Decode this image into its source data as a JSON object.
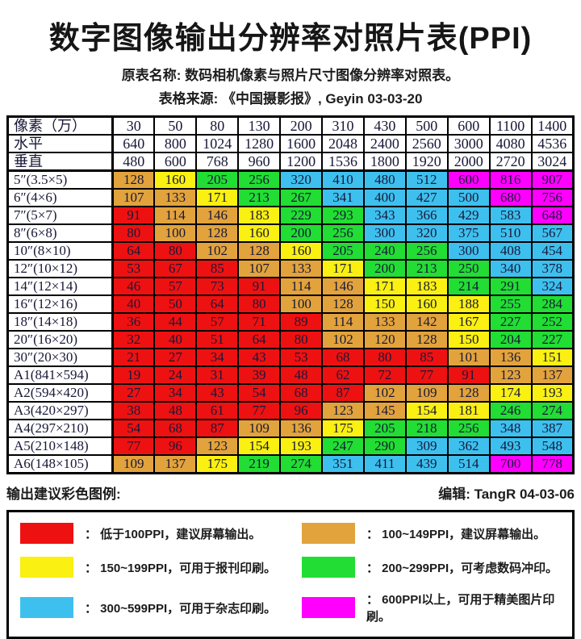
{
  "title": "数字图像输出分辨率对照片表(PPI)",
  "subtitle1": "原表名称: 数码相机像素与照片尺寸图像分辨率对照表。",
  "subtitle2": "表格来源: 《中国摄影报》, Geyin 03-03-20",
  "footer": {
    "legend_title": "输出建议彩色图例:",
    "editor": "编辑: TangR 04-03-06"
  },
  "colors": {
    "red": "#EE1111",
    "orange": "#E2A33C",
    "yellow": "#FAF012",
    "green": "#22DD33",
    "blue": "#3EC0EE",
    "magenta": "#FF00FF"
  },
  "ppi_color_rules": [
    {
      "max": 99,
      "color": "red"
    },
    {
      "max": 149,
      "color": "orange"
    },
    {
      "max": 199,
      "color": "yellow"
    },
    {
      "max": 299,
      "color": "green"
    },
    {
      "max": 599,
      "color": "blue"
    },
    {
      "max": 99999,
      "color": "magenta"
    }
  ],
  "chart_data": {
    "type": "table",
    "title": "数字图像输出分辨率对照片表(PPI)",
    "header_rows": [
      {
        "label": "像素（万）",
        "values": [
          30,
          50,
          80,
          130,
          200,
          310,
          430,
          500,
          600,
          1100,
          1400
        ]
      },
      {
        "label": "水平",
        "values": [
          640,
          800,
          1024,
          1280,
          1600,
          2048,
          2400,
          2560,
          3000,
          4080,
          4536
        ]
      },
      {
        "label": "垂直",
        "values": [
          480,
          600,
          768,
          960,
          1200,
          1536,
          1800,
          1920,
          2000,
          2720,
          3024
        ]
      }
    ],
    "rows": [
      {
        "label": "5″(3.5×5)",
        "values": [
          128,
          160,
          205,
          256,
          320,
          410,
          480,
          512,
          600,
          816,
          907
        ]
      },
      {
        "label": "6″(4×6)",
        "values": [
          107,
          133,
          171,
          213,
          267,
          341,
          400,
          427,
          500,
          680,
          756
        ]
      },
      {
        "label": "7″(5×7)",
        "values": [
          91,
          114,
          146,
          183,
          229,
          293,
          343,
          366,
          429,
          583,
          648
        ]
      },
      {
        "label": "8″(6×8)",
        "values": [
          80,
          100,
          128,
          160,
          200,
          256,
          300,
          320,
          375,
          510,
          567
        ]
      },
      {
        "label": "10″(8×10)",
        "values": [
          64,
          80,
          102,
          128,
          160,
          205,
          240,
          256,
          300,
          408,
          454
        ]
      },
      {
        "label": "12″(10×12)",
        "values": [
          53,
          67,
          85,
          107,
          133,
          171,
          200,
          213,
          250,
          340,
          378
        ]
      },
      {
        "label": "14″(12×14)",
        "values": [
          46,
          57,
          73,
          91,
          114,
          146,
          171,
          183,
          214,
          291,
          324
        ]
      },
      {
        "label": "16″(12×16)",
        "values": [
          40,
          50,
          64,
          80,
          100,
          128,
          150,
          160,
          188,
          255,
          284
        ]
      },
      {
        "label": "18″(14×18)",
        "values": [
          36,
          44,
          57,
          71,
          89,
          114,
          133,
          142,
          167,
          227,
          252
        ]
      },
      {
        "label": "20″(16×20)",
        "values": [
          32,
          40,
          51,
          64,
          80,
          102,
          120,
          128,
          150,
          204,
          227
        ]
      },
      {
        "label": "30″(20×30)",
        "values": [
          21,
          27,
          34,
          43,
          53,
          68,
          80,
          85,
          101,
          136,
          151
        ]
      },
      {
        "label": "A1(841×594)",
        "values": [
          19,
          24,
          31,
          39,
          48,
          62,
          72,
          77,
          91,
          123,
          137
        ]
      },
      {
        "label": "A2(594×420)",
        "values": [
          27,
          34,
          43,
          54,
          68,
          87,
          102,
          109,
          128,
          174,
          193
        ]
      },
      {
        "label": "A3(420×297)",
        "values": [
          38,
          48,
          61,
          77,
          96,
          123,
          145,
          154,
          181,
          246,
          274
        ]
      },
      {
        "label": "A4(297×210)",
        "values": [
          54,
          68,
          87,
          109,
          136,
          175,
          205,
          218,
          256,
          348,
          387
        ]
      },
      {
        "label": "A5(210×148)",
        "values": [
          77,
          96,
          123,
          154,
          193,
          247,
          290,
          309,
          362,
          493,
          548
        ]
      },
      {
        "label": "A6(148×105)",
        "values": [
          109,
          137,
          175,
          219,
          274,
          351,
          411,
          439,
          514,
          700,
          778
        ]
      }
    ]
  },
  "legend_items": [
    {
      "color": "red",
      "text": "： 低于100PPI，建议屏幕输出。"
    },
    {
      "color": "orange",
      "text": "： 100~149PPI，建议屏幕输出。"
    },
    {
      "color": "yellow",
      "text": "： 150~199PPI，可用于报刊印刷。"
    },
    {
      "color": "green",
      "text": "： 200~299PPI，可考虑数码冲印。"
    },
    {
      "color": "blue",
      "text": "： 300~599PPI，可用于杂志印刷。"
    },
    {
      "color": "magenta",
      "text": "： 600PPI以上，可用于精美图片印刷。"
    }
  ]
}
